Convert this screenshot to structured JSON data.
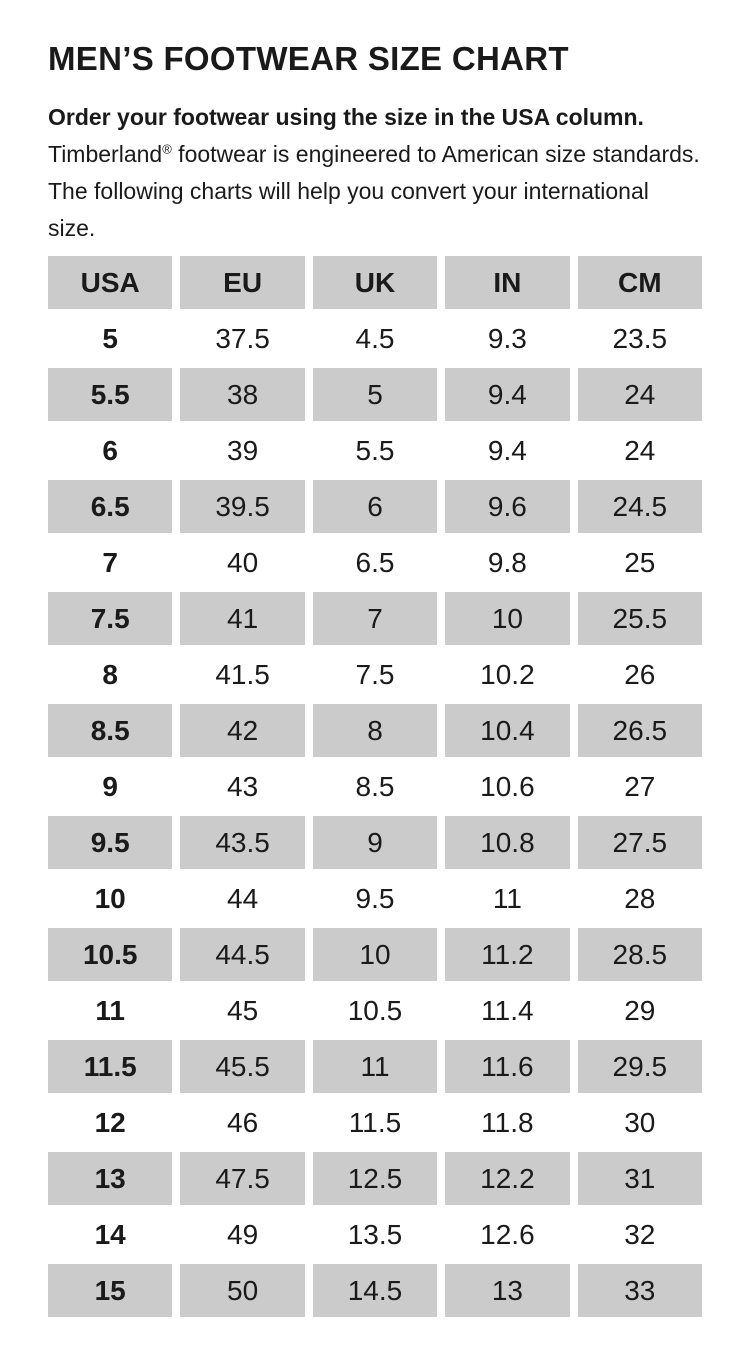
{
  "header": {
    "title": "MEN’S FOOTWEAR SIZE CHART",
    "intro_bold": "Order your footwear using the size in the USA column.",
    "brand": "Timberland",
    "reg_symbol": "®",
    "intro_after_brand": " footwear is engineered to American size standards. The following charts will help you convert your international size."
  },
  "colors": {
    "background": "#ffffff",
    "text": "#1a1a1a",
    "row_shaded": "#cbcbcb"
  },
  "chart_data": {
    "type": "table",
    "title": "MEN’S FOOTWEAR SIZE CHART",
    "columns": [
      "USA",
      "EU",
      "UK",
      "IN",
      "CM"
    ],
    "rows": [
      [
        "5",
        "37.5",
        "4.5",
        "9.3",
        "23.5"
      ],
      [
        "5.5",
        "38",
        "5",
        "9.4",
        "24"
      ],
      [
        "6",
        "39",
        "5.5",
        "9.4",
        "24"
      ],
      [
        "6.5",
        "39.5",
        "6",
        "9.6",
        "24.5"
      ],
      [
        "7",
        "40",
        "6.5",
        "9.8",
        "25"
      ],
      [
        "7.5",
        "41",
        "7",
        "10",
        "25.5"
      ],
      [
        "8",
        "41.5",
        "7.5",
        "10.2",
        "26"
      ],
      [
        "8.5",
        "42",
        "8",
        "10.4",
        "26.5"
      ],
      [
        "9",
        "43",
        "8.5",
        "10.6",
        "27"
      ],
      [
        "9.5",
        "43.5",
        "9",
        "10.8",
        "27.5"
      ],
      [
        "10",
        "44",
        "9.5",
        "11",
        "28"
      ],
      [
        "10.5",
        "44.5",
        "10",
        "11.2",
        "28.5"
      ],
      [
        "11",
        "45",
        "10.5",
        "11.4",
        "29"
      ],
      [
        "11.5",
        "45.5",
        "11",
        "11.6",
        "29.5"
      ],
      [
        "12",
        "46",
        "11.5",
        "11.8",
        "30"
      ],
      [
        "13",
        "47.5",
        "12.5",
        "12.2",
        "31"
      ],
      [
        "14",
        "49",
        "13.5",
        "12.6",
        "32"
      ],
      [
        "15",
        "50",
        "14.5",
        "13",
        "33"
      ]
    ],
    "layout": {
      "bold_column": "USA",
      "shaded_rows": "header and every second data row",
      "grid": "off"
    }
  }
}
